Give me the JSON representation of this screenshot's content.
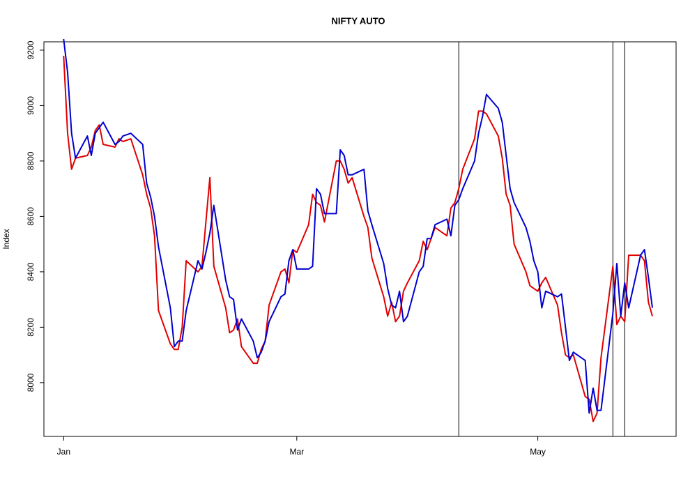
{
  "chart_data": {
    "type": "line",
    "title": "NIFTY AUTO",
    "y_label": "Index",
    "x": [
      0,
      1,
      2,
      3,
      6,
      7,
      8,
      9,
      10,
      13,
      14,
      15,
      17,
      20,
      21,
      22,
      23,
      24,
      27,
      28,
      29,
      30,
      31,
      34,
      35,
      36,
      37,
      38,
      41,
      42,
      43,
      44,
      45,
      48,
      49,
      50,
      51,
      52,
      55,
      56,
      57,
      58,
      59,
      62,
      63,
      64,
      65,
      66,
      69,
      70,
      71,
      72,
      73,
      76,
      77,
      78,
      81,
      82,
      83,
      84,
      85,
      86,
      87,
      90,
      91,
      92,
      93,
      94,
      97,
      98,
      99,
      100,
      101,
      104,
      105,
      106,
      107,
      110,
      111,
      112,
      113,
      114,
      117,
      118,
      119,
      120,
      121,
      122,
      125,
      126,
      127,
      128,
      129,
      132,
      133,
      134,
      135,
      136,
      139,
      140,
      141,
      142,
      143,
      146,
      147,
      148,
      149
    ],
    "series": [
      {
        "color": "#e00000",
        "values": [
          9180,
          8900,
          8770,
          8810,
          8820,
          8850,
          8910,
          8930,
          8860,
          8850,
          8880,
          8870,
          8880,
          8750,
          8680,
          8630,
          8530,
          8260,
          8140,
          8120,
          8120,
          8200,
          8440,
          8400,
          8420,
          8580,
          8740,
          8420,
          8270,
          8180,
          8190,
          8230,
          8130,
          8070,
          8070,
          8120,
          8150,
          8280,
          8400,
          8410,
          8360,
          8480,
          8470,
          8570,
          8680,
          8650,
          8640,
          8580,
          8800,
          8800,
          8770,
          8720,
          8740,
          8600,
          8560,
          8450,
          8310,
          8240,
          8290,
          8220,
          8240,
          8330,
          8360,
          8440,
          8510,
          8480,
          8520,
          8560,
          8530,
          8630,
          8650,
          8700,
          8770,
          8880,
          8980,
          8980,
          8970,
          8890,
          8810,
          8680,
          8640,
          8500,
          8400,
          8350,
          8340,
          8330,
          8360,
          8380,
          8280,
          8180,
          8100,
          8090,
          8100,
          7950,
          7940,
          7860,
          7890,
          8090,
          8420,
          8210,
          8240,
          8220,
          8460,
          8460,
          8440,
          8290,
          8240
        ]
      },
      {
        "color": "#0000d0",
        "values": [
          9240,
          9120,
          8900,
          8810,
          8890,
          8820,
          8900,
          8920,
          8940,
          8860,
          8870,
          8890,
          8900,
          8860,
          8720,
          8670,
          8600,
          8490,
          8270,
          8130,
          8150,
          8150,
          8260,
          8440,
          8410,
          8470,
          8540,
          8640,
          8370,
          8310,
          8300,
          8190,
          8230,
          8150,
          8090,
          8110,
          8150,
          8220,
          8310,
          8320,
          8440,
          8480,
          8410,
          8410,
          8420,
          8700,
          8680,
          8610,
          8610,
          8840,
          8820,
          8750,
          8750,
          8770,
          8620,
          8570,
          8430,
          8340,
          8280,
          8270,
          8330,
          8220,
          8240,
          8400,
          8420,
          8520,
          8520,
          8570,
          8590,
          8530,
          8640,
          8660,
          8700,
          8800,
          8900,
          8960,
          9040,
          8990,
          8940,
          8820,
          8700,
          8650,
          8560,
          8510,
          8440,
          8400,
          8270,
          8330,
          8310,
          8320,
          8200,
          8080,
          8110,
          8080,
          7890,
          7980,
          7900,
          7900,
          8250,
          8430,
          8240,
          8360,
          8270,
          8460,
          8480,
          8380,
          8270
        ]
      }
    ],
    "xlim": [
      -5,
      155
    ],
    "xticks": [
      {
        "value": 0,
        "label": "Jan"
      },
      {
        "value": 59,
        "label": "Mar"
      },
      {
        "value": 120,
        "label": "May"
      }
    ],
    "ylim": [
      7806,
      9230
    ],
    "yticks": [
      8000,
      8200,
      8400,
      8600,
      8800,
      9000,
      9200
    ],
    "vlines": [
      100,
      139,
      142
    ],
    "vline_color": "#000000"
  }
}
